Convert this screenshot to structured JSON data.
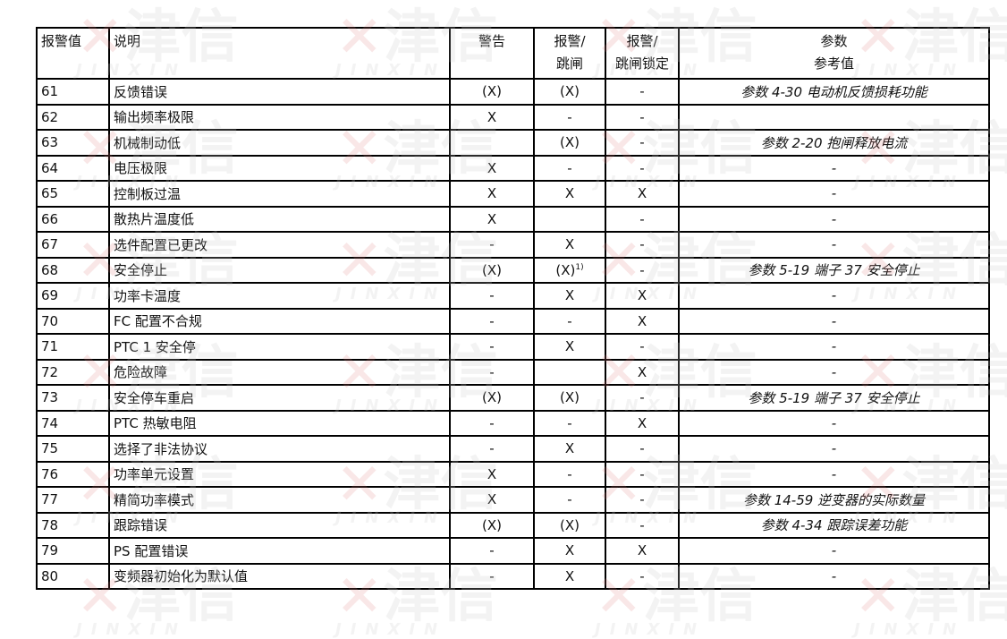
{
  "watermark": {
    "brand_cn": "津信",
    "brand_en": "JINXIN"
  },
  "headers": {
    "code": "报警值",
    "desc": "说明",
    "warning": "警告",
    "alarm_trip_1": "报警/",
    "alarm_trip_2": "跳闸",
    "alarm_lock_1": "报警/",
    "alarm_lock_2": "跳闸锁定",
    "param_1": "参数",
    "param_2": "参考值"
  },
  "rows": [
    {
      "code": "61",
      "desc": "反馈错误",
      "warning": "(X)",
      "trip": "(X)",
      "trip_sup": "",
      "lock": "-",
      "param": "参数 4-30 电动机反馈损耗功能"
    },
    {
      "code": "62",
      "desc": "输出频率极限",
      "warning": "X",
      "trip": "-",
      "trip_sup": "",
      "lock": "-",
      "param": ""
    },
    {
      "code": "63",
      "desc": "机械制动低",
      "warning": "",
      "trip": "(X)",
      "trip_sup": "",
      "lock": "-",
      "param": "参数 2-20 抱闸释放电流"
    },
    {
      "code": "64",
      "desc": "电压极限",
      "warning": "X",
      "trip": "-",
      "trip_sup": "",
      "lock": "-",
      "param": "-"
    },
    {
      "code": "65",
      "desc": "控制板过温",
      "warning": "X",
      "trip": "X",
      "trip_sup": "",
      "lock": "X",
      "param": "-"
    },
    {
      "code": "66",
      "desc": "散热片温度低",
      "warning": "X",
      "trip": "",
      "trip_sup": "",
      "lock": "-",
      "param": "-"
    },
    {
      "code": "67",
      "desc": "选件配置已更改",
      "warning": "-",
      "trip": "X",
      "trip_sup": "",
      "lock": "-",
      "param": "-"
    },
    {
      "code": "68",
      "desc": "安全停止",
      "warning": "(X)",
      "trip": "(X)",
      "trip_sup": "1)",
      "lock": "-",
      "param": "参数 5-19 端子 37 安全停止"
    },
    {
      "code": "69",
      "desc": "功率卡温度",
      "warning": "-",
      "trip": "X",
      "trip_sup": "",
      "lock": "X",
      "param": "-"
    },
    {
      "code": "70",
      "desc": "FC 配置不合规",
      "warning": "-",
      "trip": "-",
      "trip_sup": "",
      "lock": "X",
      "param": "-"
    },
    {
      "code": "71",
      "desc": "PTC 1 安全停",
      "warning": "-",
      "trip": "X",
      "trip_sup": "",
      "lock": "-",
      "param": "-"
    },
    {
      "code": "72",
      "desc": "危险故障",
      "warning": "-",
      "trip": "",
      "trip_sup": "",
      "lock": "X",
      "param": "-"
    },
    {
      "code": "73",
      "desc": "安全停车重启",
      "warning": "(X)",
      "trip": "(X)",
      "trip_sup": "",
      "lock": "-",
      "param": "参数 5-19 端子 37 安全停止"
    },
    {
      "code": "74",
      "desc": "PTC 热敏电阻",
      "warning": "-",
      "trip": "-",
      "trip_sup": "",
      "lock": "X",
      "param": "-"
    },
    {
      "code": "75",
      "desc": "选择了非法协议",
      "warning": "-",
      "trip": "X",
      "trip_sup": "",
      "lock": "-",
      "param": "-"
    },
    {
      "code": "76",
      "desc": "功率单元设置",
      "warning": "X",
      "trip": "-",
      "trip_sup": "",
      "lock": "-",
      "param": "-"
    },
    {
      "code": "77",
      "desc": "精简功率模式",
      "warning": "X",
      "trip": "-",
      "trip_sup": "",
      "lock": "-",
      "param": "参数 14-59 逆变器的实际数量"
    },
    {
      "code": "78",
      "desc": "跟踪错误",
      "warning": "(X)",
      "trip": "(X)",
      "trip_sup": "",
      "lock": "-",
      "param": "参数 4-34 跟踪误差功能"
    },
    {
      "code": "79",
      "desc": "PS 配置错误",
      "warning": "-",
      "trip": "X",
      "trip_sup": "",
      "lock": "X",
      "param": "-"
    },
    {
      "code": "80",
      "desc": "变频器初始化为默认值",
      "warning": "-",
      "trip": "X",
      "trip_sup": "",
      "lock": "-",
      "param": "-"
    }
  ]
}
